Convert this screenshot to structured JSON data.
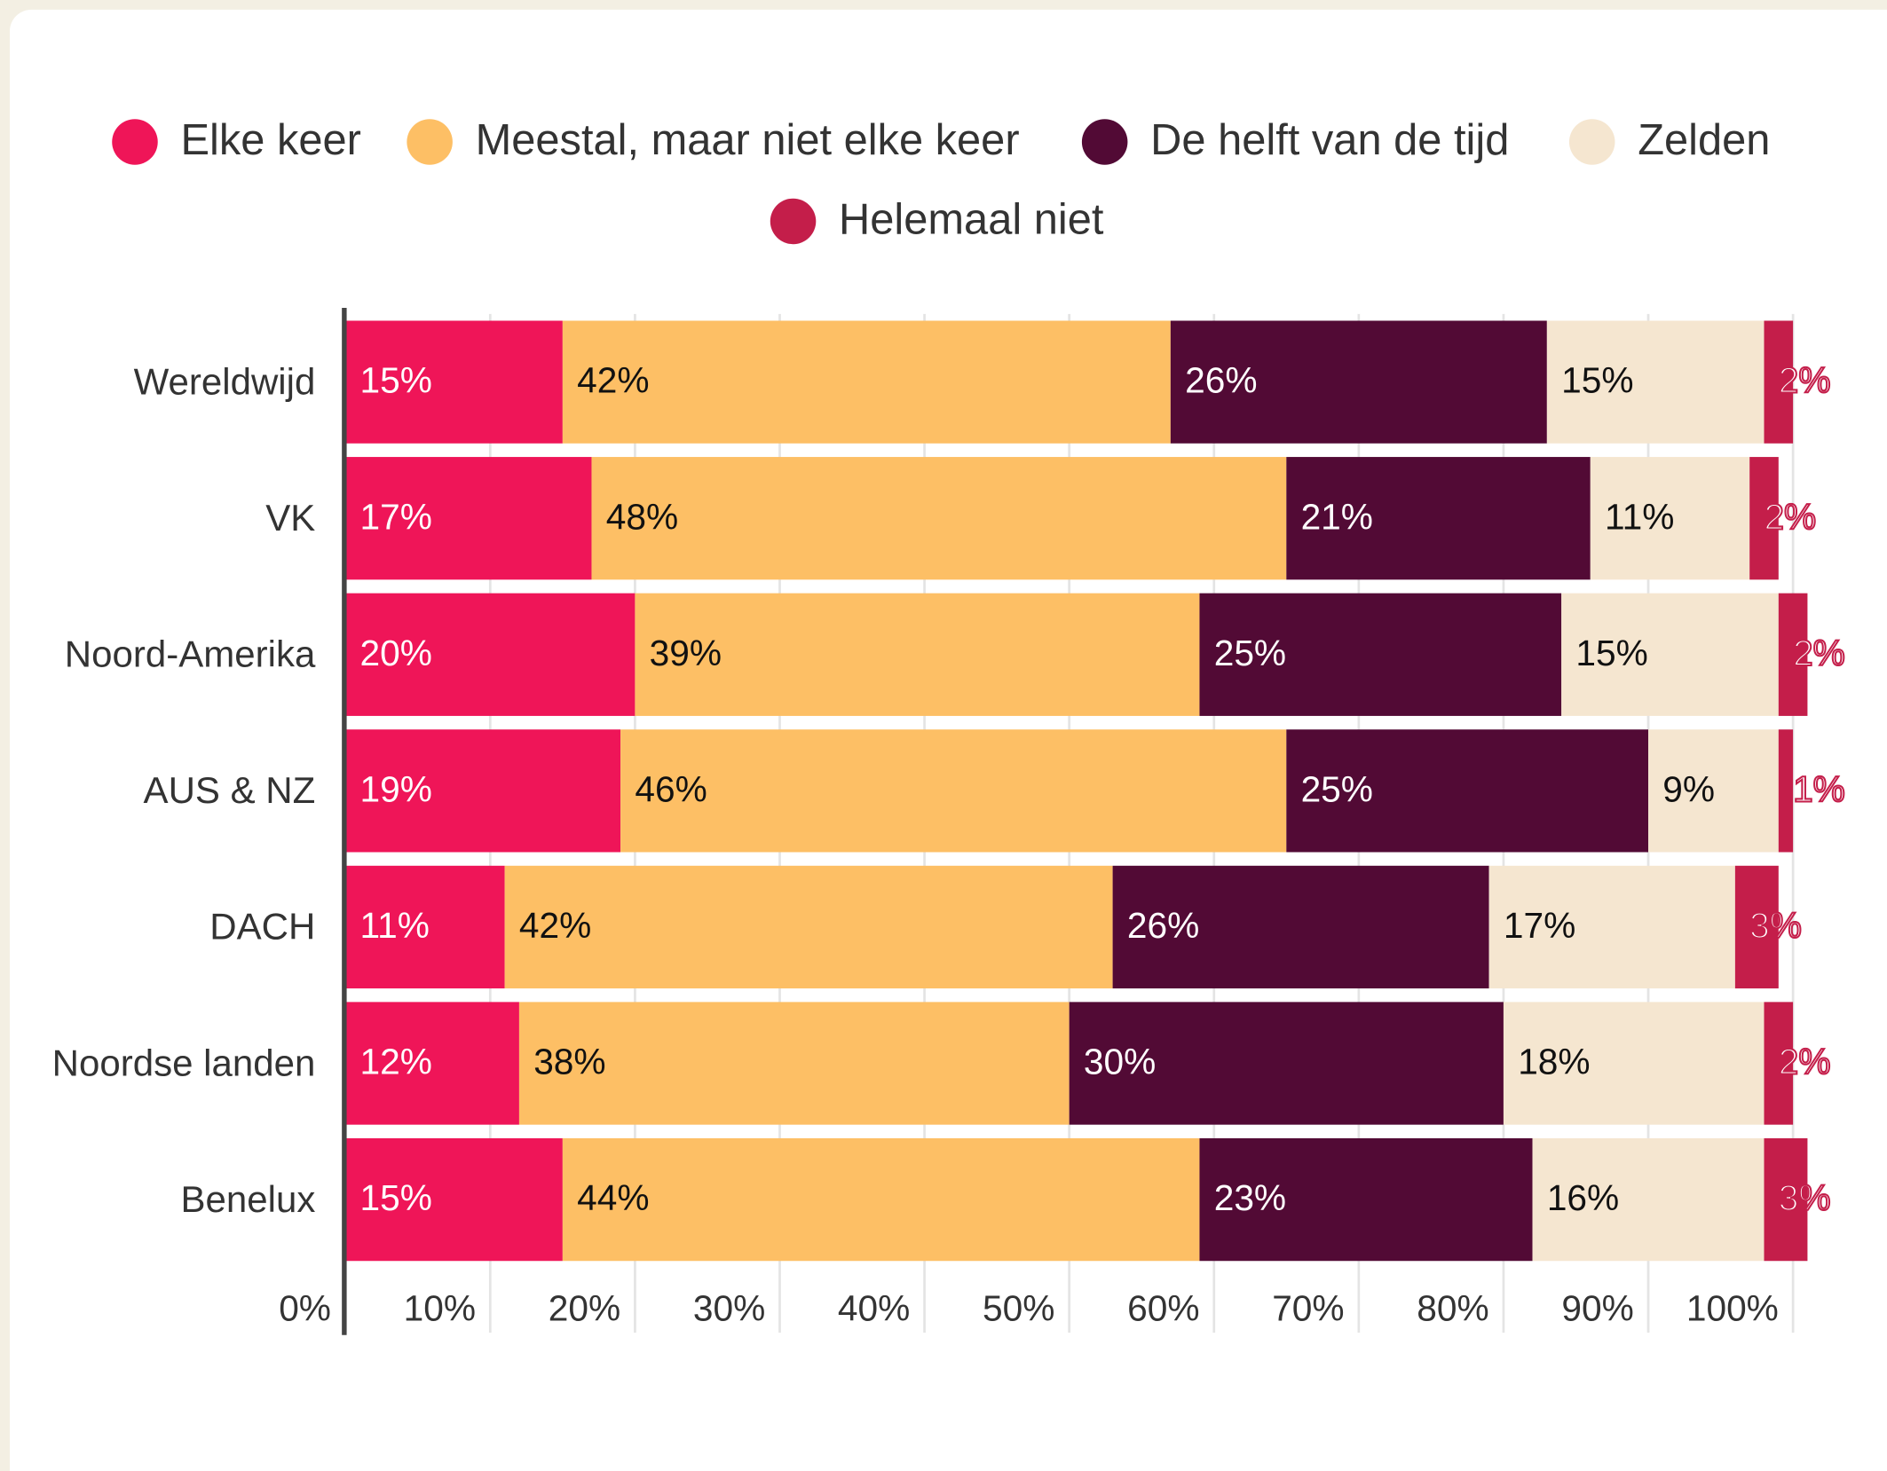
{
  "chart_data": {
    "type": "bar",
    "orientation": "horizontal",
    "stacked": true,
    "categories": [
      "Wereldwijd",
      "VK",
      "Noord-Amerika",
      "AUS & NZ",
      "DACH",
      "Noordse landen",
      "Benelux"
    ],
    "series": [
      {
        "name": "Elke keer",
        "color": "#ef1558",
        "values": [
          15,
          17,
          20,
          19,
          11,
          12,
          15
        ],
        "value_labels": [
          "15%",
          "17%",
          "20%",
          "19%",
          "11%",
          "12%",
          "15%"
        ]
      },
      {
        "name": "Meestal, maar niet elke keer",
        "color": "#fdbf65",
        "values": [
          42,
          48,
          39,
          46,
          42,
          38,
          44
        ],
        "value_labels": [
          "42%",
          "48%",
          "39%",
          "46%",
          "42%",
          "38%",
          "44%"
        ]
      },
      {
        "name": "De helft van de tijd",
        "color": "#520a35",
        "values": [
          26,
          21,
          25,
          25,
          26,
          30,
          23
        ],
        "value_labels": [
          "26%",
          "21%",
          "25%",
          "25%",
          "26%",
          "30%",
          "23%"
        ]
      },
      {
        "name": "Zelden",
        "color": "#f5e6d0",
        "values": [
          15,
          11,
          15,
          9,
          17,
          18,
          16
        ],
        "value_labels": [
          "15%",
          "11%",
          "15%",
          "9%",
          "17%",
          "18%",
          "16%"
        ]
      },
      {
        "name": "Helemaal niet",
        "color": "#c41e4a",
        "values": [
          2,
          2,
          2,
          1,
          3,
          2,
          3
        ],
        "value_labels": [
          "2%",
          "2%",
          "2%",
          "1%",
          "3%",
          "2%",
          "3%"
        ]
      }
    ],
    "xlim": [
      0,
      100
    ],
    "xticks": [
      {
        "value": 0,
        "label": "0%"
      },
      {
        "value": 10,
        "label": "10%"
      },
      {
        "value": 20,
        "label": "20%"
      },
      {
        "value": 30,
        "label": "30%"
      },
      {
        "value": 40,
        "label": "40%"
      },
      {
        "value": 50,
        "label": "50%"
      },
      {
        "value": 60,
        "label": "60%"
      },
      {
        "value": 70,
        "label": "70%"
      },
      {
        "value": 80,
        "label": "80%"
      },
      {
        "value": 90,
        "label": "90%"
      },
      {
        "value": 100,
        "label": "100%"
      }
    ],
    "grid": true,
    "legend": "top"
  }
}
